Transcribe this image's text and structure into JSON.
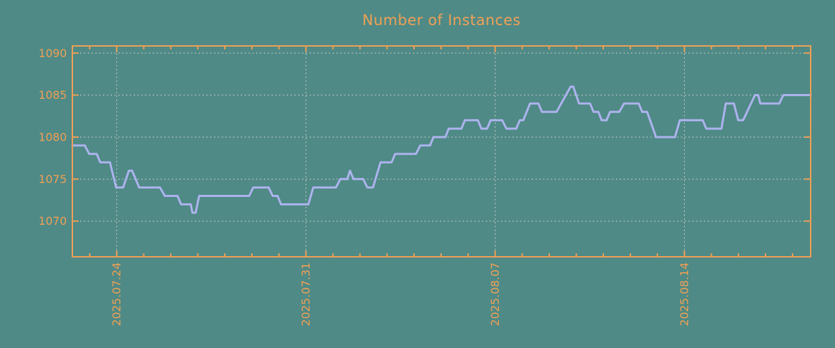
{
  "colors": {
    "background": "#4f8a86",
    "axis_and_text": "#f0a055",
    "gridline": "#c9cdc9",
    "series_line": "#adb3ee"
  },
  "chart_data": {
    "type": "line",
    "title": "Number of Instances",
    "legend": "none",
    "grid": true,
    "x_axis": {
      "tick_labels": [
        "2025.07.24",
        "2025.07.31",
        "2025.08.07",
        "2025.08.14"
      ],
      "major_tick_days": [
        0,
        7,
        14,
        21
      ],
      "minor_tick_every_days": 1,
      "xlim_days": [
        -1.64,
        25.67
      ],
      "note": "x measured in days relative to the 2025.07.24 gridline"
    },
    "y_axis": {
      "tick_values": [
        1070,
        1075,
        1080,
        1085,
        1090
      ],
      "ylim": [
        1065.75,
        1090.85
      ]
    },
    "series": [
      {
        "points_day_value": [
          [
            -1.64,
            1079
          ],
          [
            -1.18,
            1079
          ],
          [
            -1.02,
            1078
          ],
          [
            -0.74,
            1078
          ],
          [
            -0.61,
            1077
          ],
          [
            -0.25,
            1077
          ],
          [
            -0.02,
            1074
          ],
          [
            0.24,
            1074
          ],
          [
            0.45,
            1076
          ],
          [
            0.57,
            1076
          ],
          [
            0.83,
            1074
          ],
          [
            1.6,
            1074
          ],
          [
            1.78,
            1073
          ],
          [
            2.25,
            1073
          ],
          [
            2.38,
            1072
          ],
          [
            2.74,
            1072
          ],
          [
            2.8,
            1071
          ],
          [
            2.92,
            1071
          ],
          [
            3.05,
            1073
          ],
          [
            4.9,
            1073
          ],
          [
            5.05,
            1074
          ],
          [
            5.62,
            1074
          ],
          [
            5.77,
            1073
          ],
          [
            5.95,
            1073
          ],
          [
            6.08,
            1072
          ],
          [
            7.09,
            1072
          ],
          [
            7.27,
            1074
          ],
          [
            8.11,
            1074
          ],
          [
            8.27,
            1075
          ],
          [
            8.53,
            1075
          ],
          [
            8.63,
            1076
          ],
          [
            8.76,
            1075
          ],
          [
            9.12,
            1075
          ],
          [
            9.27,
            1074
          ],
          [
            9.48,
            1074
          ],
          [
            9.76,
            1077
          ],
          [
            10.17,
            1077
          ],
          [
            10.3,
            1078
          ],
          [
            11.07,
            1078
          ],
          [
            11.23,
            1079
          ],
          [
            11.59,
            1079
          ],
          [
            11.72,
            1080
          ],
          [
            12.16,
            1080
          ],
          [
            12.28,
            1081
          ],
          [
            12.75,
            1081
          ],
          [
            12.88,
            1082
          ],
          [
            13.36,
            1082
          ],
          [
            13.49,
            1081
          ],
          [
            13.7,
            1081
          ],
          [
            13.83,
            1082
          ],
          [
            14.26,
            1082
          ],
          [
            14.42,
            1081
          ],
          [
            14.78,
            1081
          ],
          [
            14.91,
            1082
          ],
          [
            15.04,
            1082
          ],
          [
            15.29,
            1084
          ],
          [
            15.6,
            1084
          ],
          [
            15.73,
            1083
          ],
          [
            16.27,
            1083
          ],
          [
            16.79,
            1086
          ],
          [
            16.89,
            1086
          ],
          [
            17.1,
            1084
          ],
          [
            17.51,
            1084
          ],
          [
            17.64,
            1083
          ],
          [
            17.82,
            1083
          ],
          [
            17.94,
            1082
          ],
          [
            18.12,
            1082
          ],
          [
            18.25,
            1083
          ],
          [
            18.59,
            1083
          ],
          [
            18.77,
            1084
          ],
          [
            19.31,
            1084
          ],
          [
            19.44,
            1083
          ],
          [
            19.62,
            1083
          ],
          [
            19.95,
            1080
          ],
          [
            20.65,
            1080
          ],
          [
            20.83,
            1082
          ],
          [
            21.68,
            1082
          ],
          [
            21.81,
            1081
          ],
          [
            22.37,
            1081
          ],
          [
            22.53,
            1084
          ],
          [
            22.83,
            1084
          ],
          [
            22.99,
            1082
          ],
          [
            23.17,
            1082
          ],
          [
            23.61,
            1085
          ],
          [
            23.73,
            1085
          ],
          [
            23.81,
            1084
          ],
          [
            24.51,
            1084
          ],
          [
            24.66,
            1085
          ],
          [
            25.67,
            1085
          ]
        ]
      }
    ]
  }
}
